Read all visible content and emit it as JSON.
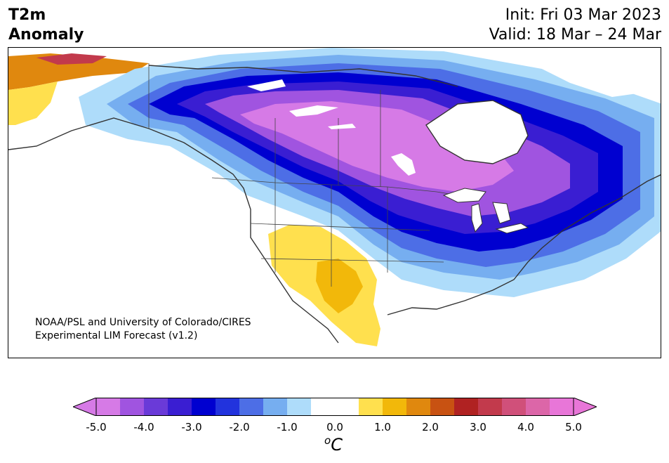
{
  "header": {
    "title_line1": "T2m",
    "title_line2": "Anomaly",
    "init": "Init: Fri 03 Mar 2023",
    "valid": "Valid: 18 Mar – 24 Mar"
  },
  "map": {
    "region": "North America",
    "credit_line1": "NOAA/PSL and University of Colorado/CIRES",
    "credit_line2": "Experimental LIM Forecast (v1.2)"
  },
  "colorbar": {
    "unit_base": "C",
    "unit_sup": "o",
    "ticks": [
      "-5.0",
      "-4.0",
      "-3.0",
      "-2.0",
      "-1.0",
      "0.0",
      "1.0",
      "2.0",
      "3.0",
      "4.0",
      "5.0"
    ],
    "tick_values": [
      -5,
      -4,
      -3,
      -2,
      -1,
      0,
      1,
      2,
      3,
      4,
      5
    ],
    "min": -5.0,
    "max": 5.0,
    "step": 0.5,
    "colors": [
      "#d67ae6",
      "#a054e0",
      "#6a3ad8",
      "#3a1ed2",
      "#0000d0",
      "#2233dd",
      "#4d6ee6",
      "#76aef0",
      "#aedcfa",
      "#ffffff",
      "#ffffff",
      "#ffe04e",
      "#f2b80a",
      "#e0880e",
      "#c85212",
      "#b02222",
      "#c23a4c",
      "#d0507a",
      "#dc66a8",
      "#e876d8"
    ],
    "under_color": "#d67ae6",
    "over_color": "#e876d8"
  }
}
